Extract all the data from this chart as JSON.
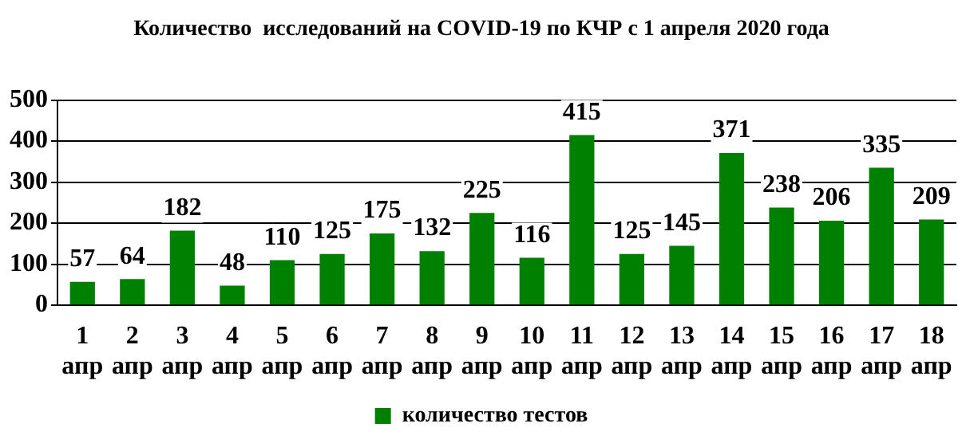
{
  "chart_data": {
    "type": "bar",
    "title": "Количество  исследований на COVID-19 по КЧР с 1 апреля 2020 года",
    "categories": [
      "1 апр",
      "2 апр",
      "3 апр",
      "4 апр",
      "5 апр",
      "6 апр",
      "7 апр",
      "8 апр",
      "9 апр",
      "10 апр",
      "11 апр",
      "12 апр",
      "13 апр",
      "14 апр",
      "15 апр",
      "16 апр",
      "17 апр",
      "18 апр"
    ],
    "series": [
      {
        "name": "количество тестов",
        "color": "#008000",
        "values": [
          57,
          64,
          182,
          48,
          110,
          125,
          175,
          132,
          225,
          116,
          415,
          125,
          145,
          371,
          238,
          206,
          335,
          209
        ]
      }
    ],
    "ylim": [
      0,
      500
    ],
    "yticks": [
      0,
      100,
      200,
      300,
      400,
      500
    ],
    "grid": "y",
    "legend": "bottom",
    "data_labels": true
  }
}
